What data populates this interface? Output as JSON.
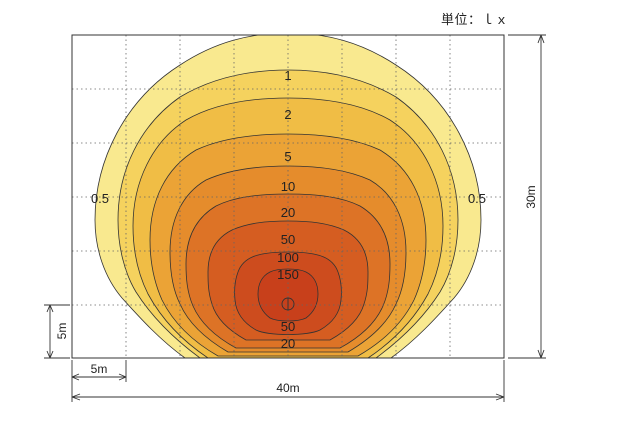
{
  "unit_label": "単位：ｌｘ",
  "contour_levels": [
    {
      "label": "1",
      "color": "#f5d25e"
    },
    {
      "label": "2",
      "color": "#f0bd45"
    },
    {
      "label": "5",
      "color": "#eba336"
    },
    {
      "label": "10",
      "color": "#e58c2c"
    },
    {
      "label": "20",
      "color": "#dd7326"
    },
    {
      "label": "50",
      "color": "#d55d21"
    },
    {
      "label": "100",
      "color": "#cd4c1e"
    },
    {
      "label": "150",
      "color": "#c8401b"
    }
  ],
  "outer_level": {
    "label": "0.5",
    "color": "#f9e98f"
  },
  "lower_labels": [
    "50",
    "20"
  ],
  "dimensions": {
    "height": "30m",
    "width": "40m",
    "grid_x": "5m",
    "grid_y": "5m"
  }
}
